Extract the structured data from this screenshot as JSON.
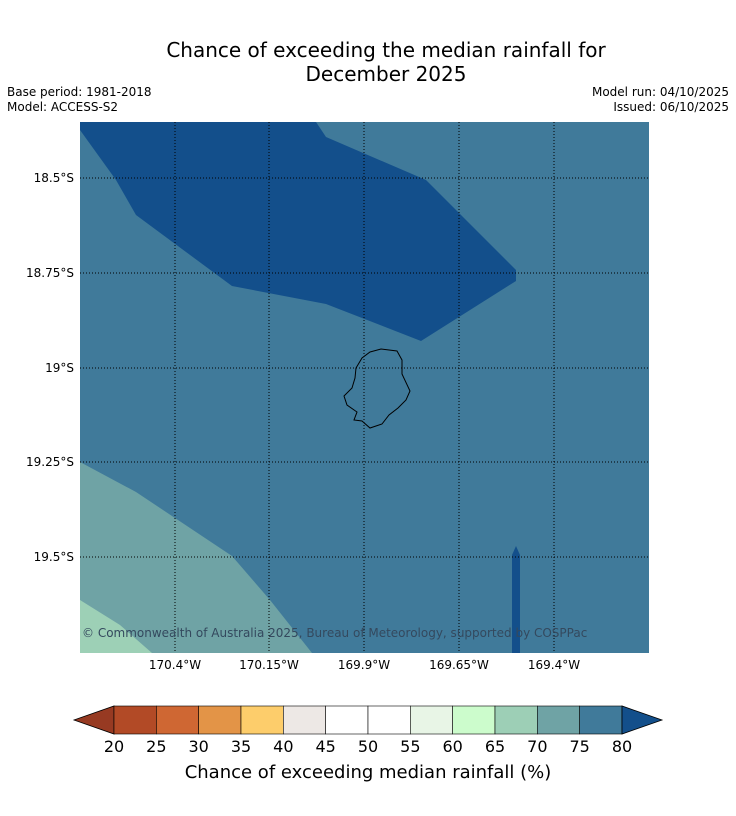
{
  "header": {
    "title_line1": "Chance of exceeding the median rainfall for",
    "title_line2": "December 2025",
    "base_period": "Base period: 1981-2018",
    "model": "Model: ACCESS-S2",
    "model_run": "Model run: 04/10/2025",
    "issued": "Issued: 06/10/2025"
  },
  "map": {
    "latitudes": [
      "18.5°S",
      "18.75°S",
      "19°S",
      "19.25°S",
      "19.5°S"
    ],
    "longitudes": [
      "170.4°W",
      "170.15°W",
      "169.9°W",
      "169.65°W",
      "169.4°W"
    ],
    "copyright": "© Commonwealth of Australia 2025, Bureau of Meteorology, supported by COSPPac",
    "region_colors": {
      "above_80": "#134f8b",
      "75_80": "#407a9a",
      "70_75": "#6fa3a5",
      "65_70": "#9dd0b6"
    }
  },
  "colorbar": {
    "ticks": [
      "20",
      "25",
      "30",
      "35",
      "40",
      "45",
      "50",
      "55",
      "60",
      "65",
      "70",
      "75",
      "80"
    ],
    "colors": [
      "#b24a26",
      "#cf6733",
      "#e39447",
      "#fdcd6b",
      "#ede8e5",
      "#ffffff",
      "#ffffff",
      "#e8f5e6",
      "#ccfccc",
      "#9dcfb6",
      "#6fa3a5",
      "#407a9a"
    ],
    "under_color": "#973a22",
    "over_color": "#134f8b",
    "label": "Chance of exceeding median rainfall (%)"
  }
}
